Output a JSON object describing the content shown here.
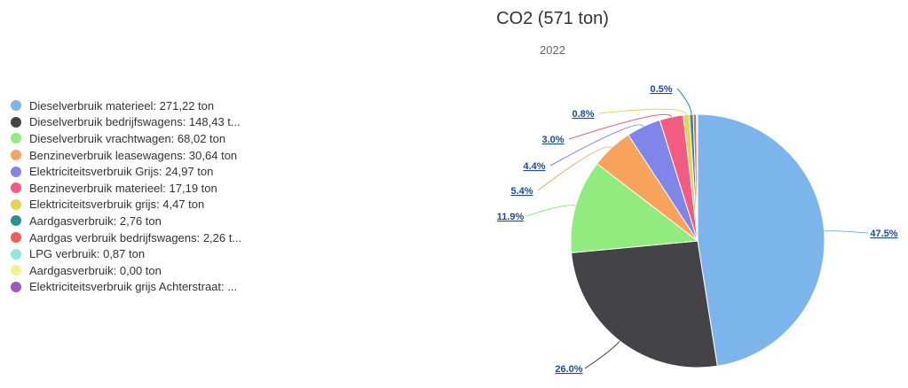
{
  "header": {
    "title": "CO2 (571 ton)",
    "subtitle": "2022"
  },
  "legend": {
    "items": [
      {
        "label": "Dieselverbruik materieel: 271,22 ton",
        "color": "#7cb5ec"
      },
      {
        "label": "Dieselverbruik bedrijfswagens: 148,43 t...",
        "color": "#434348"
      },
      {
        "label": "Dieselverbruik vrachtwagen: 68,02 ton",
        "color": "#90ed7d"
      },
      {
        "label": "Benzineverbruik leasewagens: 30,64 ton",
        "color": "#f7a35c"
      },
      {
        "label": "Elektriciteitsverbruik Grijs: 24,97 ton",
        "color": "#8085e9"
      },
      {
        "label": "Benzineverbruik materieel: 17,19 ton",
        "color": "#f15c80"
      },
      {
        "label": "Elektriciteitsverbruik grijs: 4,47 ton",
        "color": "#e4d354"
      },
      {
        "label": "Aardgasverbruik: 2,76 ton",
        "color": "#2b908f"
      },
      {
        "label": "Aardgas verbruik bedrijfswagens: 2,26 t...",
        "color": "#f45b5b"
      },
      {
        "label": "LPG verbruik: 0,87 ton",
        "color": "#91e8e1"
      },
      {
        "label": "Aardgasverbruik: 0,00 ton",
        "color": "#f7f18a"
      },
      {
        "label": "Elektriciteitsverbruik grijs Achterstraat: ...",
        "color": "#9b59c7"
      }
    ]
  },
  "chart_data": {
    "type": "pie",
    "title": "CO2 (571 ton)",
    "subtitle": "2022",
    "legend_position": "left",
    "slices": [
      {
        "name": "Dieselverbruik materieel",
        "value": 271.22,
        "color": "#7cb5ec",
        "label": "47.5%"
      },
      {
        "name": "Dieselverbruik bedrijfswagens",
        "value": 148.43,
        "color": "#434348",
        "label": "26.0%"
      },
      {
        "name": "Dieselverbruik vrachtwagen",
        "value": 68.02,
        "color": "#90ed7d",
        "label": "11.9%"
      },
      {
        "name": "Benzineverbruik leasewagens",
        "value": 30.64,
        "color": "#f7a35c",
        "label": "5.4%"
      },
      {
        "name": "Elektriciteitsverbruik Grijs",
        "value": 24.97,
        "color": "#8085e9",
        "label": "4.4%"
      },
      {
        "name": "Benzineverbruik materieel",
        "value": 17.19,
        "color": "#f15c80",
        "label": "3.0%"
      },
      {
        "name": "Elektriciteitsverbruik grijs",
        "value": 4.47,
        "color": "#e4d354",
        "label": "0.8%"
      },
      {
        "name": "Aardgasverbruik",
        "value": 2.76,
        "color": "#2b908f",
        "label": "0.5%"
      },
      {
        "name": "Aardgas verbruik bedrijfswagens",
        "value": 2.26,
        "color": "#f45b5b",
        "label": ""
      },
      {
        "name": "LPG verbruik",
        "value": 0.87,
        "color": "#91e8e1",
        "label": ""
      },
      {
        "name": "Aardgasverbruik",
        "value": 0.0,
        "color": "#f7f18a",
        "label": ""
      },
      {
        "name": "Elektriciteitsverbruik grijs Achterstraat",
        "value": 0.0,
        "color": "#9b59c7",
        "label": ""
      }
    ]
  }
}
